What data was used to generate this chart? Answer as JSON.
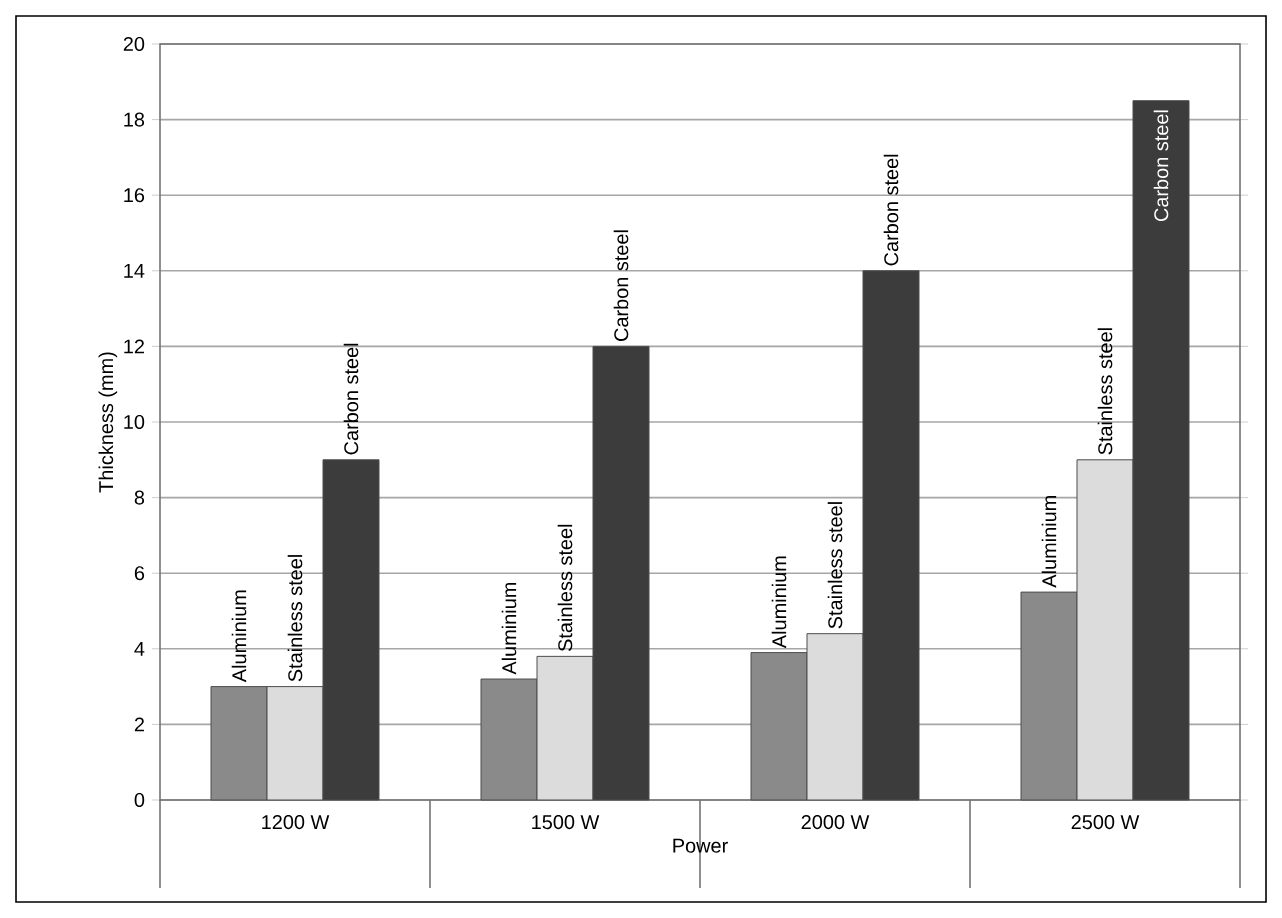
{
  "chart_data": {
    "type": "bar",
    "xlabel": "Power",
    "ylabel": "Thickness (mm)",
    "categories": [
      "1200 W",
      "1500 W",
      "2000 W",
      "2500 W"
    ],
    "series": [
      {
        "name": "Aluminium",
        "color": "#8a8a8a",
        "values": [
          3,
          3.2,
          3.9,
          5.5
        ]
      },
      {
        "name": "Stainless steel",
        "color": "#dcdcdc",
        "values": [
          3,
          3.8,
          4.4,
          9
        ]
      },
      {
        "name": "Carbon steel",
        "color": "#3c3c3c",
        "values": [
          9,
          12,
          14,
          18.5
        ]
      }
    ],
    "ylim": [
      0,
      20
    ],
    "yticks": [
      0,
      2,
      4,
      6,
      8,
      10,
      12,
      14,
      16,
      18,
      20
    ],
    "grid": "y"
  }
}
